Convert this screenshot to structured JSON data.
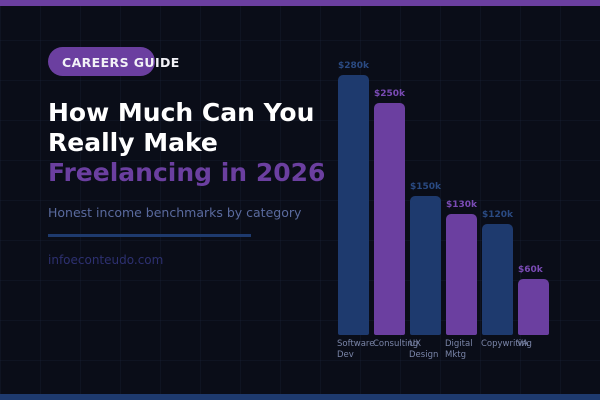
{
  "badge": {
    "label": "CAREERS GUIDE"
  },
  "title": {
    "line1": "How Much Can You",
    "line2": "Really Make",
    "accent": "Freelancing in 2026"
  },
  "subtitle": "Honest income benchmarks by category",
  "site": "infoeconteudo.com",
  "colors": {
    "background": "#0a0d18",
    "purple": "#6b3fa0",
    "blue": "#1e3a6e",
    "title": "#ffffff",
    "subtitle": "#5a6a9e"
  },
  "chart_data": {
    "type": "bar",
    "title": "",
    "xlabel": "",
    "ylabel": "",
    "categories": [
      "Software Dev",
      "Consulting",
      "UX Design",
      "Digital Mktg",
      "Copywriting",
      "VA"
    ],
    "values": [
      280,
      250,
      150,
      130,
      120,
      60
    ],
    "value_labels": [
      "$280k",
      "$250k",
      "$150k",
      "$130k",
      "$120k",
      "$60k"
    ],
    "unit": "$k per year",
    "bar_colors": [
      "#1e3a6e",
      "#6b3fa0",
      "#1e3a6e",
      "#6b3fa0",
      "#1e3a6e",
      "#6b3fa0"
    ],
    "label_colors": [
      "#2a4a82",
      "#7a4bb5",
      "#2a4a82",
      "#7a4bb5",
      "#2a4a82",
      "#7a4bb5"
    ],
    "ylim": [
      0,
      280
    ],
    "grid": false,
    "legend": false
  }
}
